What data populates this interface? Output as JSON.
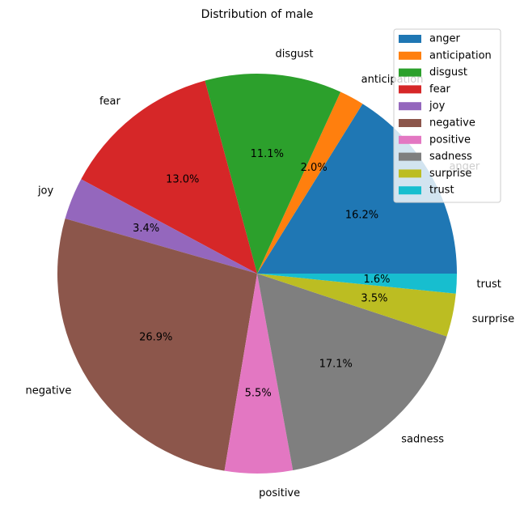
{
  "chart_data": {
    "type": "pie",
    "title": "Distribution of male",
    "categories": [
      "anger",
      "anticipation",
      "disgust",
      "fear",
      "joy",
      "negative",
      "positive",
      "sadness",
      "surprise",
      "trust"
    ],
    "values": [
      16.2,
      2.0,
      11.1,
      13.0,
      3.4,
      26.9,
      5.5,
      17.1,
      3.5,
      1.6
    ],
    "value_labels": [
      "16.2%",
      "2.0%",
      "11.1%",
      "13.0%",
      "3.4%",
      "26.9%",
      "5.5%",
      "17.1%",
      "3.5%",
      "1.6%"
    ],
    "colors": [
      "#1f77b4",
      "#ff7f0e",
      "#2ca02c",
      "#d62728",
      "#9467bd",
      "#8c564b",
      "#e377c2",
      "#7f7f7f",
      "#bcbd22",
      "#17becf"
    ],
    "start_angle_deg": 0,
    "direction": "counterclockwise",
    "legend_position": "upper right"
  }
}
